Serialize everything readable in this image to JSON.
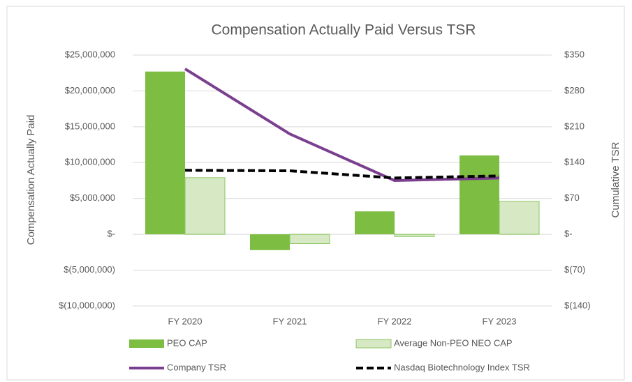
{
  "chart_data": {
    "type": "bar",
    "title": "Compensation Actually Paid Versus TSR",
    "ylabel": "Compensation Actually Paid",
    "y2label": "Cumulative TSR",
    "categories": [
      "FY 2020",
      "FY 2021",
      "FY 2022",
      "FY 2023"
    ],
    "series": [
      {
        "name": "PEO CAP",
        "type": "bar",
        "color": "#7cbd42",
        "values": [
          22700000,
          -2200000,
          3200000,
          11000000
        ]
      },
      {
        "name": "Average Non-PEO NEO CAP",
        "type": "bar",
        "color": "#d6e8c4",
        "values": [
          7900000,
          -1300000,
          -300000,
          4600000
        ]
      },
      {
        "name": "Company TSR",
        "type": "line",
        "axis": "y2",
        "color": "#7b3f8f",
        "values": [
          323,
          196,
          105,
          110
        ]
      },
      {
        "name": "Nasdaq Biotechnology Index TSR",
        "type": "line",
        "axis": "y2",
        "color": "#000000",
        "dashed": true,
        "values": [
          125,
          124,
          110,
          114
        ]
      }
    ],
    "ylim": [
      -10000000,
      25000000
    ],
    "yticks": [
      {
        "value": -10000000,
        "label": "$(10,000,000)"
      },
      {
        "value": -5000000,
        "label": "$(5,000,000)"
      },
      {
        "value": 0,
        "label": "$-"
      },
      {
        "value": 5000000,
        "label": "$5,000,000"
      },
      {
        "value": 10000000,
        "label": "$10,000,000"
      },
      {
        "value": 15000000,
        "label": "$15,000,000"
      },
      {
        "value": 20000000,
        "label": "$20,000,000"
      },
      {
        "value": 25000000,
        "label": "$25,000,000"
      }
    ],
    "y2lim": [
      -140,
      350
    ],
    "y2ticks": [
      {
        "value": -140,
        "label": "$(140)"
      },
      {
        "value": -70,
        "label": "$(70)"
      },
      {
        "value": 0,
        "label": "$-"
      },
      {
        "value": 70,
        "label": "$70"
      },
      {
        "value": 140,
        "label": "$140"
      },
      {
        "value": 210,
        "label": "$210"
      },
      {
        "value": 280,
        "label": "$280"
      },
      {
        "value": 350,
        "label": "$350"
      }
    ],
    "grid": true,
    "legend": "bottom"
  }
}
